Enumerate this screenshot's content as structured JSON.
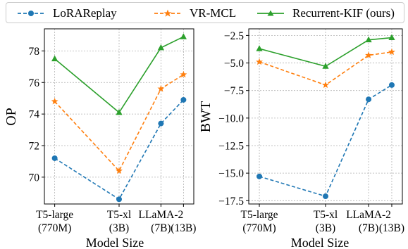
{
  "chart_data": [
    {
      "type": "line",
      "title": "",
      "xlabel": "Model Size",
      "ylabel": "OP",
      "categories": [
        [
          "T5-large",
          "(770M)"
        ],
        [
          "T5-xl",
          "(3B)"
        ],
        [
          "LLaMA-2",
          "(7B)"
        ],
        [
          "",
          "(13B)"
        ]
      ],
      "x_positions": [
        0,
        1,
        1.65,
        2
      ],
      "yticks": [
        70,
        72,
        74,
        76,
        78
      ],
      "ylim": [
        68.3,
        79.4
      ],
      "grid": true,
      "series": [
        {
          "name": "LoRAReplay",
          "values": [
            71.2,
            68.6,
            73.4,
            74.9
          ]
        },
        {
          "name": "VR-MCL",
          "values": [
            74.8,
            70.4,
            75.6,
            76.5
          ]
        },
        {
          "name": "Recurrent-KIF (ours)",
          "values": [
            77.5,
            74.1,
            78.2,
            78.9
          ]
        }
      ]
    },
    {
      "type": "line",
      "title": "",
      "xlabel": "Model Size",
      "ylabel": "BWT",
      "categories": [
        [
          "T5-large",
          "(770M)"
        ],
        [
          "T5-xl",
          "(3B)"
        ],
        [
          "LLaMA-2",
          "(7B)"
        ],
        [
          "",
          "(13B)"
        ]
      ],
      "x_positions": [
        0,
        1,
        1.65,
        2
      ],
      "yticks": [
        -17.5,
        -15.0,
        -12.5,
        -10.0,
        -7.5,
        -5.0,
        -2.5
      ],
      "ytick_labels": [
        "−17.5",
        "−15.0",
        "−12.5",
        "−10.0",
        "−7.5",
        "−5.0",
        "−2.5"
      ],
      "ylim": [
        -17.8,
        -1.9
      ],
      "grid": true,
      "series": [
        {
          "name": "LoRAReplay",
          "values": [
            -15.3,
            -17.1,
            -8.3,
            -7.0
          ]
        },
        {
          "name": "VR-MCL",
          "values": [
            -4.9,
            -7.0,
            -4.3,
            -4.0
          ]
        },
        {
          "name": "Recurrent-KIF (ours)",
          "values": [
            -3.7,
            -5.3,
            -2.9,
            -2.7
          ]
        }
      ]
    }
  ],
  "legend": {
    "placement": "top",
    "items": [
      {
        "label": "LoRAReplay",
        "color": "#1f77b4",
        "linestyle": "dashed",
        "marker": "circle"
      },
      {
        "label": "VR-MCL",
        "color": "#ff7f0e",
        "linestyle": "dashed",
        "marker": "star"
      },
      {
        "label": "Recurrent-KIF (ours)",
        "color": "#2ca02c",
        "linestyle": "solid",
        "marker": "triangle"
      }
    ]
  }
}
